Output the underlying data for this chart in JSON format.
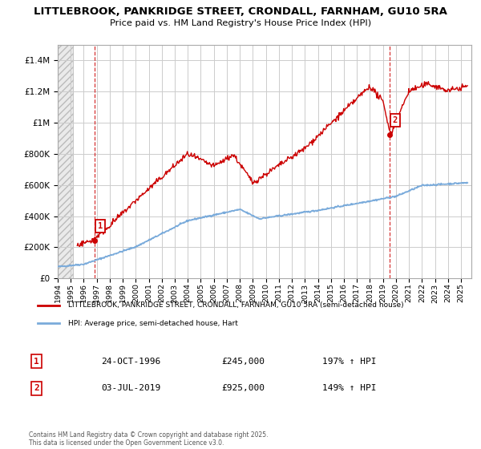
{
  "title1": "LITTLEBROOK, PANKRIDGE STREET, CRONDALL, FARNHAM, GU10 5RA",
  "title2": "Price paid vs. HM Land Registry's House Price Index (HPI)",
  "ytick_vals": [
    0,
    200000,
    400000,
    600000,
    800000,
    1000000,
    1200000,
    1400000
  ],
  "ylim": [
    0,
    1500000
  ],
  "xlim_start": 1994.0,
  "xlim_end": 2025.8,
  "xtick_years": [
    1994,
    1995,
    1996,
    1997,
    1998,
    1999,
    2000,
    2001,
    2002,
    2003,
    2004,
    2005,
    2006,
    2007,
    2008,
    2009,
    2010,
    2011,
    2012,
    2013,
    2014,
    2015,
    2016,
    2017,
    2018,
    2019,
    2020,
    2021,
    2022,
    2023,
    2024,
    2025
  ],
  "point1_x": 1996.81,
  "point1_y": 245000,
  "point1_label": "1",
  "point1_date": "24-OCT-1996",
  "point1_price": "£245,000",
  "point1_hpi": "197% ↑ HPI",
  "point2_x": 2019.5,
  "point2_y": 925000,
  "point2_label": "2",
  "point2_date": "03-JUL-2019",
  "point2_price": "£925,000",
  "point2_hpi": "149% ↑ HPI",
  "red_line_color": "#cc0000",
  "blue_line_color": "#7aabdb",
  "vline_color": "#cc0000",
  "grid_color": "#cccccc",
  "legend_label_red": "LITTLEBROOK, PANKRIDGE STREET, CRONDALL, FARNHAM, GU10 5RA (semi-detached house)",
  "legend_label_blue": "HPI: Average price, semi-detached house, Hart",
  "footer": "Contains HM Land Registry data © Crown copyright and database right 2025.\nThis data is licensed under the Open Government Licence v3.0."
}
